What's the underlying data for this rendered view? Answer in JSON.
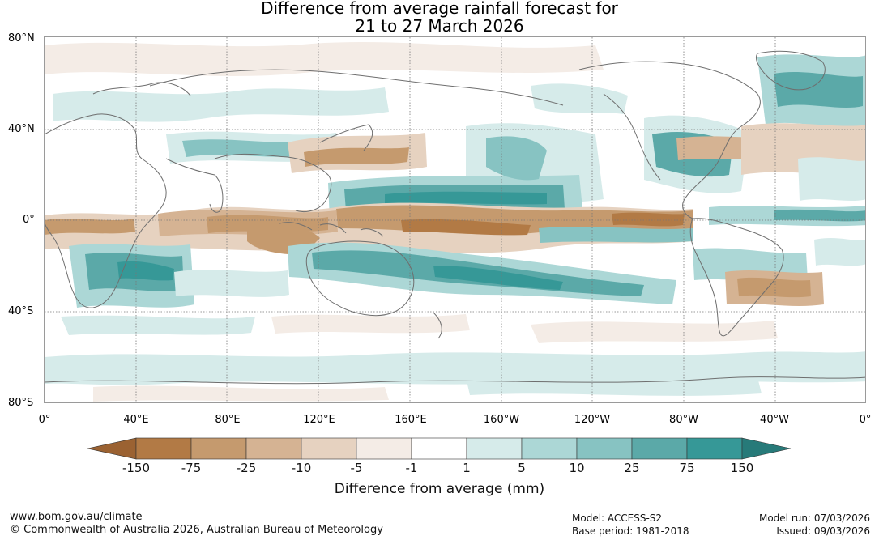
{
  "title": {
    "line1": "Difference from average rainfall forecast for",
    "line2": "21 to 27 March 2026"
  },
  "map": {
    "lat_labels": [
      "80°N",
      "40°N",
      "0°",
      "40°S",
      "80°S"
    ],
    "lon_labels": [
      "0°",
      "40°E",
      "80°E",
      "120°E",
      "160°E",
      "160°W",
      "120°W",
      "80°W",
      "40°W",
      "0°"
    ],
    "grid": "dotted"
  },
  "colorbar": {
    "title": "Difference from average (mm)",
    "tick_labels": [
      "-150",
      "-75",
      "-25",
      "-10",
      "-5",
      "-1",
      "1",
      "5",
      "10",
      "25",
      "75",
      "150"
    ],
    "colors": [
      "#9b6232",
      "#b27a45",
      "#c59a6e",
      "#d5b393",
      "#e6d2c0",
      "#f4ece6",
      "#ffffff",
      "#d6ebea",
      "#acd7d6",
      "#87c3c2",
      "#5ba9a8",
      "#369897",
      "#277a79"
    ]
  },
  "footer": {
    "website": "www.bom.gov.au/climate",
    "copyright": "© Commonwealth of Australia 2026, Australian Bureau of Meteorology",
    "model": "Model: ACCESS-S2",
    "base_period": "Base period: 1981-2018",
    "model_run": "Model run: 07/03/2026",
    "issued": "Issued: 09/03/2026"
  }
}
